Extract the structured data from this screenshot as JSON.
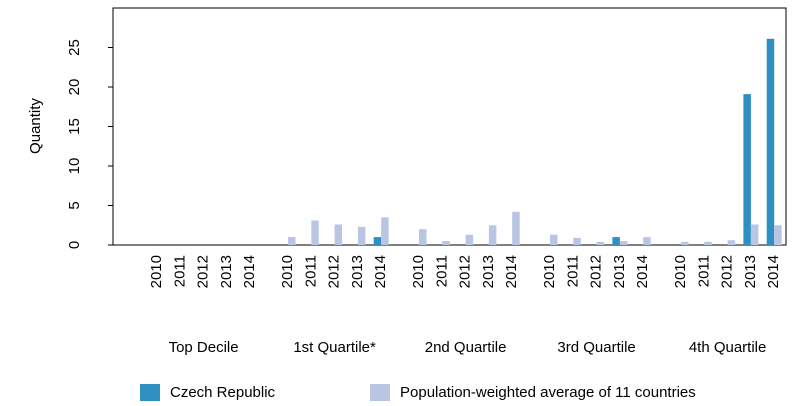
{
  "chart_data": {
    "type": "bar",
    "y_label": "Quantity",
    "groups": [
      "Top Decile",
      "1st Quartile*",
      "2nd Quartile",
      "3rd Quartile",
      "4th Quartile"
    ],
    "categories": [
      "2010",
      "2011",
      "2012",
      "2013",
      "2014",
      "2010",
      "2011",
      "2012",
      "2013",
      "2014",
      "2010",
      "2011",
      "2012",
      "2013",
      "2014",
      "2010",
      "2011",
      "2012",
      "2013",
      "2014",
      "2010",
      "2011",
      "2012",
      "2013",
      "2014"
    ],
    "series": [
      {
        "name": "Czech Republic",
        "color": "#2e8fc0",
        "values": [
          0,
          0,
          0,
          0,
          0,
          0,
          0,
          0,
          0,
          1.0,
          0,
          0,
          0,
          0,
          0,
          0,
          0,
          0,
          1.0,
          0,
          0,
          0,
          0,
          19.1,
          26.1
        ]
      },
      {
        "name": "Population-weighted average of 11 countries",
        "color": "#b8c6e3",
        "values": [
          0,
          0,
          0,
          0,
          0,
          1.0,
          3.1,
          2.6,
          2.3,
          3.5,
          2.0,
          0.5,
          1.3,
          2.5,
          4.2,
          1.3,
          0.9,
          0.4,
          0.5,
          1.0,
          0.4,
          0.4,
          0.6,
          2.6,
          2.5
        ]
      }
    ],
    "ylim": [
      0,
      30
    ],
    "yticks": [
      0,
      5,
      10,
      15,
      20,
      25
    ],
    "grid": false
  }
}
